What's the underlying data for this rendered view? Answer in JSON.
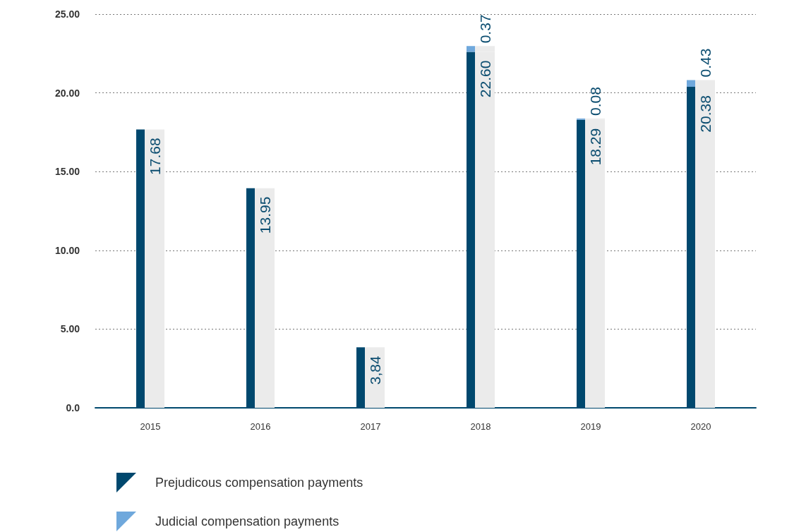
{
  "chart_data": {
    "type": "bar",
    "stacked": true,
    "categories": [
      "2015",
      "2016",
      "2017",
      "2018",
      "2019",
      "2020"
    ],
    "series": [
      {
        "name": "Prejudicous compensation payments",
        "color": "#00486e",
        "values": [
          17.68,
          13.95,
          3.84,
          22.6,
          18.29,
          20.38
        ],
        "value_labels": [
          "17.68",
          "13.95",
          "3,84",
          "22.60",
          "18.29",
          "20.38"
        ]
      },
      {
        "name": "Judicial compensation payments",
        "color": "#6fa8dc",
        "values": [
          null,
          null,
          null,
          0.37,
          0.08,
          0.43
        ],
        "value_labels": [
          null,
          null,
          null,
          "0.37",
          "0.08",
          "0.43"
        ]
      }
    ],
    "ylim": [
      0,
      25
    ],
    "yticks": [
      {
        "value": 0,
        "label": "0.0"
      },
      {
        "value": 5,
        "label": "5.00"
      },
      {
        "value": 10,
        "label": "10.00"
      },
      {
        "value": 15,
        "label": "15.00"
      },
      {
        "value": 20,
        "label": "20.00"
      },
      {
        "value": 25,
        "label": "25.00"
      }
    ],
    "grid": "y",
    "legend": "bottom left"
  }
}
